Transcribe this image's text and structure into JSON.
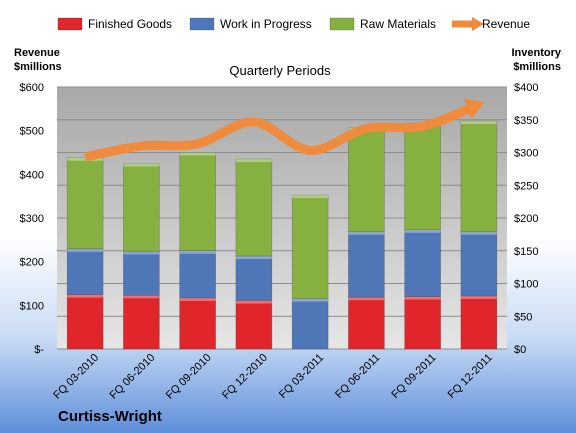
{
  "chart_data": {
    "type": "bar",
    "stacked": true,
    "subtitle": "Quarterly Periods",
    "company": "Curtiss-Wright",
    "categories": [
      "FQ 03-2010",
      "FQ 06-2010",
      "FQ 09-2010",
      "FQ 12-2010",
      "FQ 03-2011",
      "FQ 06-2011",
      "FQ 09-2011",
      "FQ 12-2011"
    ],
    "series": [
      {
        "name": "Finished Goods",
        "axis": "right",
        "color": "#E0262B",
        "values": [
          83,
          82,
          78,
          74,
          0,
          79,
          80,
          81
        ]
      },
      {
        "name": "Work in Progress",
        "axis": "right",
        "color": "#4F77B8",
        "values": [
          70,
          67,
          72,
          68,
          77,
          100,
          102,
          98
        ]
      },
      {
        "name": "Raw Materials",
        "axis": "right",
        "color": "#86B040",
        "values": [
          139,
          134,
          150,
          148,
          158,
          159,
          163,
          169
        ]
      },
      {
        "name": "Revenue",
        "type": "line",
        "axis": "left",
        "color": "#F08A3C",
        "values": [
          440,
          465,
          470,
          520,
          455,
          505,
          510,
          560
        ]
      }
    ],
    "left_axis": {
      "title_line1": "Revenue",
      "title_line2": "$millions",
      "min": 0,
      "max": 600,
      "ticks": [
        "$-",
        "$100",
        "$200",
        "$300",
        "$400",
        "$500",
        "$600"
      ]
    },
    "right_axis": {
      "title_line1": "Inventory",
      "title_line2": "$millions",
      "min": 0,
      "max": 400,
      "ticks": [
        "$0",
        "$50",
        "$100",
        "$150",
        "$200",
        "$250",
        "$300",
        "$350",
        "$400"
      ]
    },
    "legend_position": "top",
    "grid": true
  }
}
